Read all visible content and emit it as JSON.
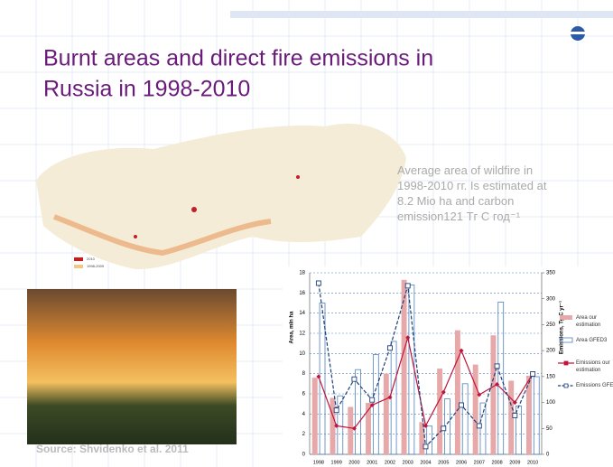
{
  "title": [
    "Burnt areas and direct fire emissions in",
    "Russia in 1998-2010"
  ],
  "note": "Average area of wildfire in 1998-2010 гг. Is estimated at 8.2 Mio ha and carbon emission121 Тг С год⁻¹",
  "source": "Source: Shvidenko et al. 2011",
  "map_legend": [
    "2010",
    "1998-2009"
  ],
  "chart_data": {
    "type": "bar",
    "categories": [
      "1998",
      "1999",
      "2000",
      "2001",
      "2002",
      "2003",
      "2004",
      "2005",
      "2006",
      "2007",
      "2008",
      "2009",
      "2010"
    ],
    "ylabel": "Area, mln ha",
    "y2label": "Emissions, Tg C yr⁻¹",
    "ylim": [
      0,
      18
    ],
    "yticks": [
      0,
      2,
      4,
      6,
      8,
      10,
      12,
      14,
      16,
      18
    ],
    "y2lim": [
      0,
      350
    ],
    "y2ticks": [
      0,
      50,
      100,
      150,
      200,
      250,
      300,
      350
    ],
    "grid": true,
    "legend": "right",
    "series": [
      {
        "name": "Area our estimation",
        "color": "#e6a8a8",
        "outline": false,
        "values": [
          7.6,
          5.6,
          4.7,
          5.1,
          8.0,
          17.3,
          3.2,
          8.5,
          12.3,
          8.9,
          11.8,
          7.3,
          7.8
        ]
      },
      {
        "name": "Area GFED3",
        "color": "#4f81bd",
        "outline": true,
        "values": [
          15.0,
          5.8,
          8.4,
          9.9,
          11.2,
          16.8,
          2.8,
          5.5,
          7.0,
          5.1,
          15.1,
          4.8,
          7.7
        ]
      },
      {
        "name": "Emissions our estimation",
        "color": "#c0143c",
        "axis": "y2",
        "dashed": false,
        "marker": "diamond",
        "values": [
          150,
          55,
          50,
          95,
          110,
          225,
          55,
          120,
          200,
          115,
          135,
          100,
          155
        ]
      },
      {
        "name": "Emissions GFED3",
        "color": "#1f3f7a",
        "axis": "y2",
        "dashed": true,
        "marker": "square",
        "values": [
          330,
          85,
          145,
          105,
          205,
          325,
          15,
          50,
          95,
          55,
          170,
          75,
          155
        ]
      }
    ]
  }
}
